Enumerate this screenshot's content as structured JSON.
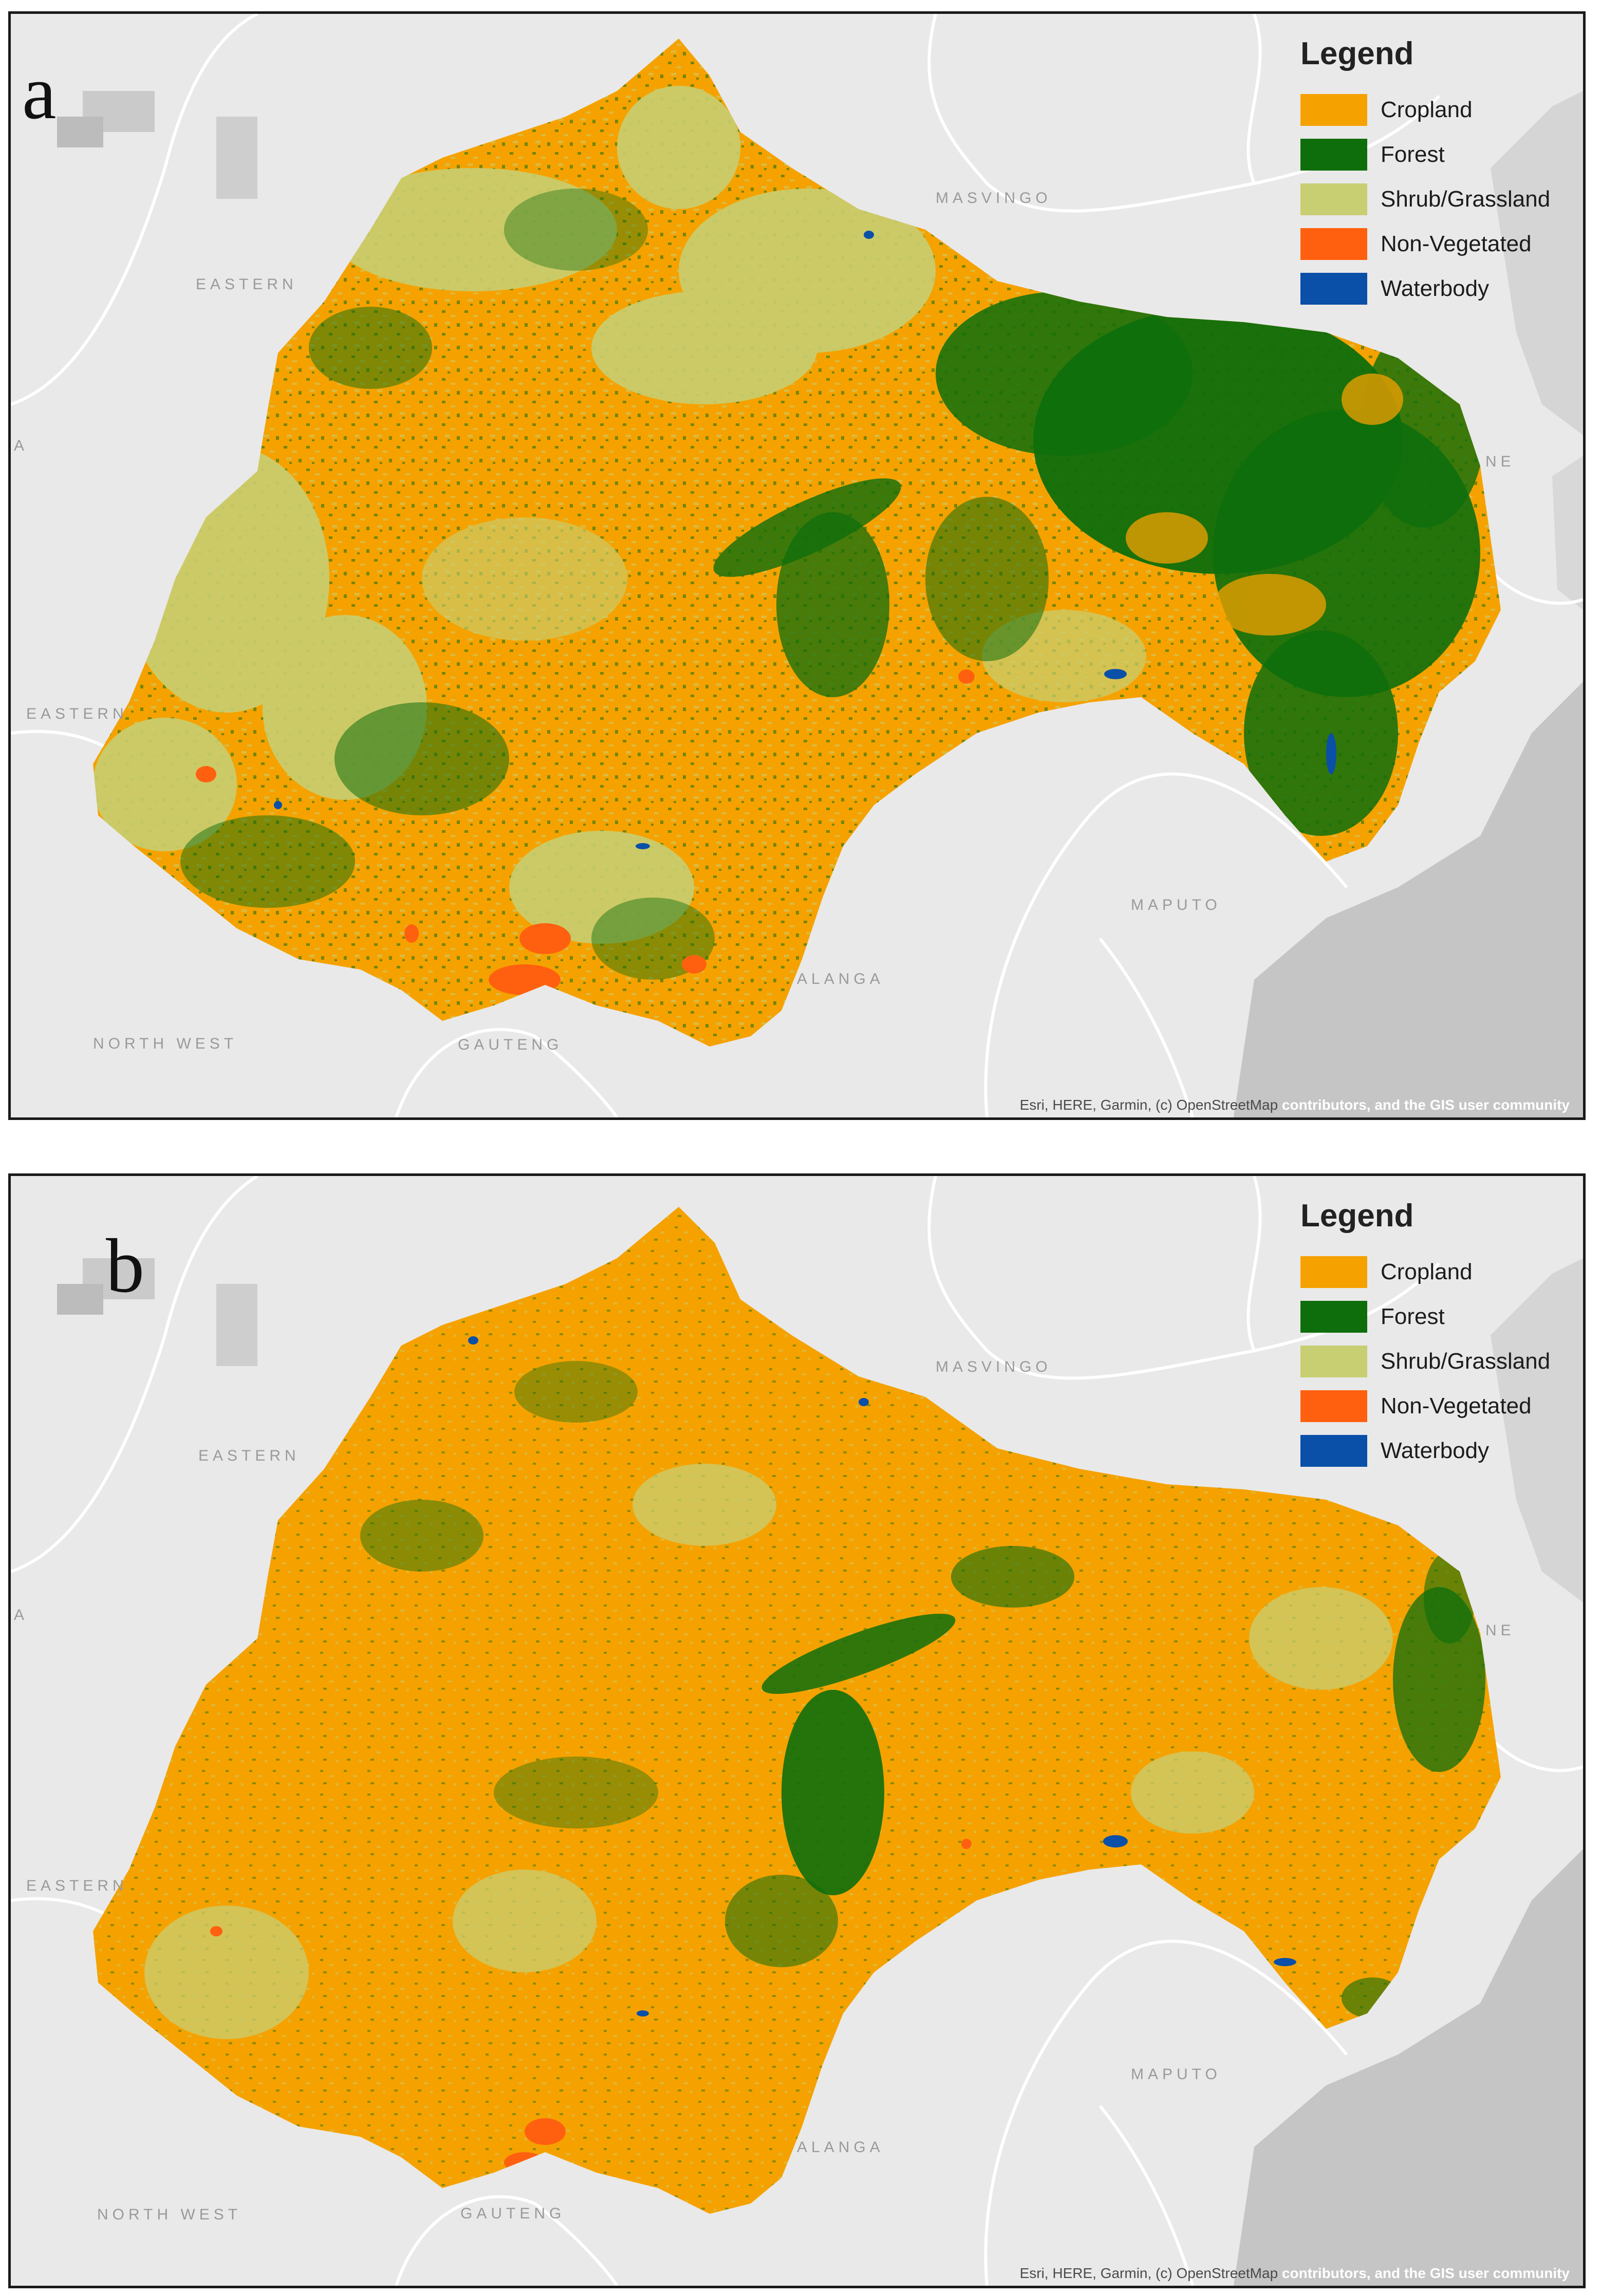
{
  "panels": [
    {
      "id": "a",
      "letter": "a",
      "legend": {
        "title": "Legend",
        "items": [
          {
            "label": "Cropland",
            "color": "#F5A200"
          },
          {
            "label": "Forest",
            "color": "#0E6E0C"
          },
          {
            "label": "Shrub/Grassland",
            "color": "#C8CE72"
          },
          {
            "label": "Non-Vegetated",
            "color": "#FF6010"
          },
          {
            "label": "Waterbody",
            "color": "#0A4FA8"
          }
        ]
      },
      "place_labels": [
        "MASVINGO",
        "EASTERN",
        "A",
        "EASTERN",
        "NE",
        "MAPUTO",
        "ALANGA",
        "NORTH WEST",
        "GAUTENG"
      ],
      "attribution": {
        "part1": "Esri, HERE, Garmin, (c) OpenStreetMap",
        "part2": " contributors, and the GIS user community"
      }
    },
    {
      "id": "b",
      "letter": "b",
      "legend": {
        "title": "Legend",
        "items": [
          {
            "label": "Cropland",
            "color": "#F5A200"
          },
          {
            "label": "Forest",
            "color": "#0E6E0C"
          },
          {
            "label": "Shrub/Grassland",
            "color": "#C8CE72"
          },
          {
            "label": "Non-Vegetated",
            "color": "#FF6010"
          },
          {
            "label": "Waterbody",
            "color": "#0A4FA8"
          }
        ]
      },
      "place_labels": [
        "MASVINGO",
        "EASTERN",
        "A",
        "EASTERN",
        "NE",
        "MAPUTO",
        "ALANGA",
        "NORTH WEST",
        "GAUTENG"
      ],
      "attribution": {
        "part1": "Esri, HERE, Garmin, (c) OpenStreetMap",
        "part2": " contributors, and the GIS user community"
      }
    }
  ],
  "colors": {
    "basemap": "#E9E9E9",
    "ocean": "#C5C5C5",
    "boundary": "#FFFFFF",
    "cropland": "#F5A200",
    "forest": "#0E6E0C",
    "shrub": "#C8CE72",
    "nonveg": "#FF6010",
    "water": "#0A4FA8"
  }
}
